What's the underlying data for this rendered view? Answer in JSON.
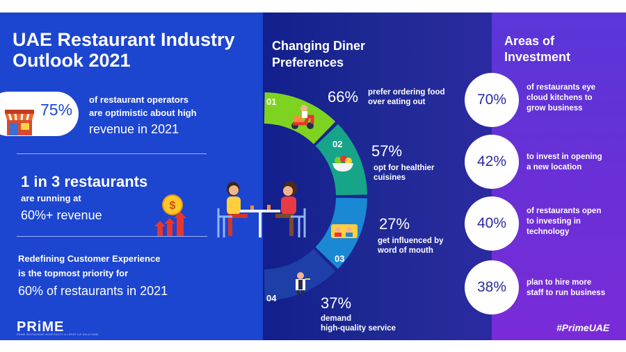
{
  "left": {
    "title": "UAE Restaurant Industry Outlook 2021",
    "stat1": {
      "value": "75%",
      "line1": "of restaurant operators",
      "line2": "are optimistic about high",
      "line3": "revenue in 2021"
    },
    "stat2": {
      "headline": "1 in 3 restaurants",
      "line1": "are running at",
      "line2": "60%+ revenue"
    },
    "stat3": {
      "line1": "Redefining Customer Experience",
      "line2": "is the topmost priority for",
      "line3": "60% of restaurants in 2021"
    },
    "logo": "PRiME",
    "logo_sub": "PRIME RESTAURANT HOSPITALITY & LIFESTYLE SOLUTIONS"
  },
  "middle": {
    "title": "Changing Diner Preferences",
    "items": [
      {
        "num": "01",
        "pct": "66%",
        "line1": "prefer ordering food",
        "line2": "over eating out"
      },
      {
        "num": "02",
        "pct": "57%",
        "line1": "opt for healthier",
        "line2": "cuisines"
      },
      {
        "num": "03",
        "pct": "27%",
        "line1": "get influenced by",
        "line2": "word of mouth"
      },
      {
        "num": "04",
        "pct": "37%",
        "line1": "demand",
        "line2": "high-quality service"
      }
    ],
    "colors": {
      "seg1": "#7ed321",
      "seg2": "#17a58a",
      "seg3": "#1b88d6",
      "seg4": "#1e3fa8"
    }
  },
  "right": {
    "title": "Areas of Investment",
    "items": [
      {
        "pct": "70%",
        "line1": "of restaurants eye",
        "line2": "cloud kitchens to",
        "line3": "grow business"
      },
      {
        "pct": "42%",
        "line1": "to invest in opening",
        "line2": "a new location",
        "line3": ""
      },
      {
        "pct": "40%",
        "line1": "of restaurants open",
        "line2": "to investing in",
        "line3": "technology"
      },
      {
        "pct": "38%",
        "line1": "plan to hire more",
        "line2": "staff to run business",
        "line3": ""
      }
    ],
    "hashtag": "#PrimeUAE"
  },
  "icons": {
    "store": "store-icon",
    "coin": "dollar-coin-icon",
    "arrows": "growth-arrows-icon",
    "diners": "diners-illustration",
    "scooter": "delivery-scooter-icon",
    "salad": "salad-bowl-icon",
    "reviews": "review-people-icon",
    "waiter": "waiter-icon"
  }
}
